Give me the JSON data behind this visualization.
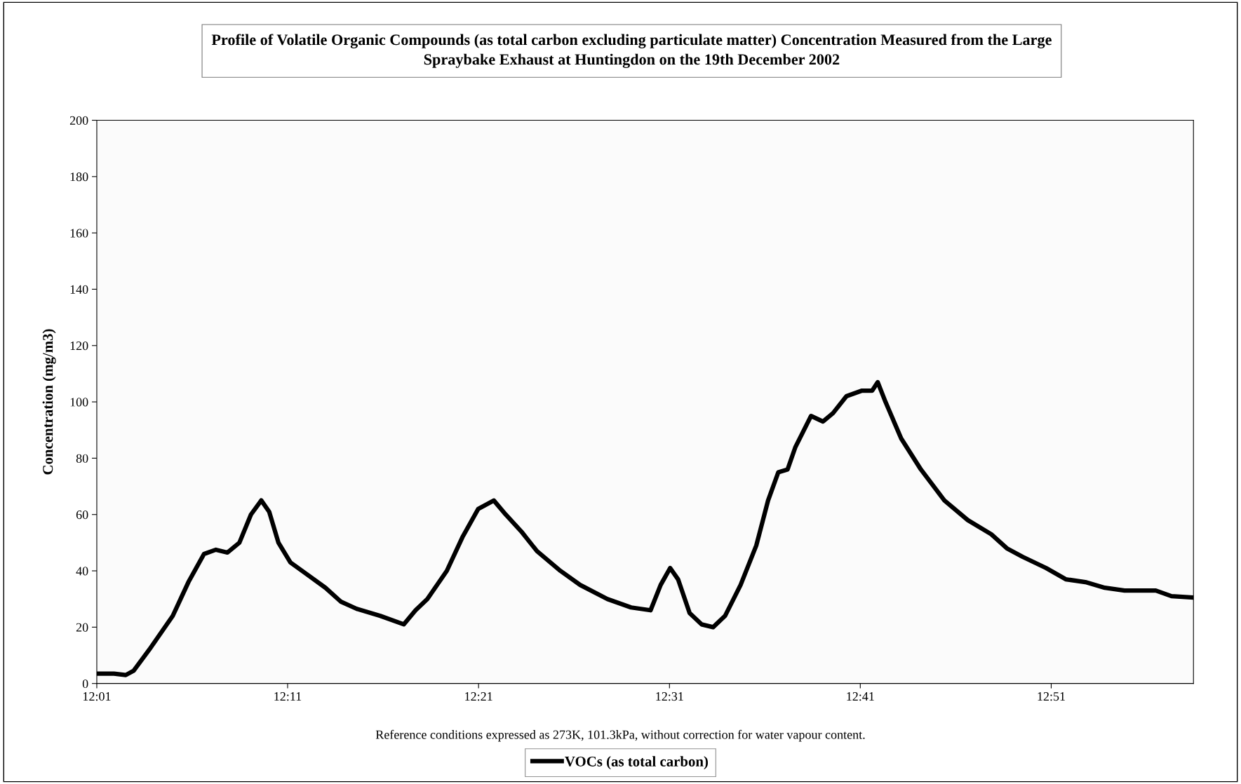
{
  "chart_data": {
    "type": "line",
    "title": "Profile of Volatile Organic Compounds (as total carbon excluding particulate matter) Concentration Measured from the Large\nSpraybake Exhaust at Huntingdon on the 19th December 2002",
    "ylabel": "Concentration (mg/m3)",
    "annotations": [
      "Reference conditions expressed as 273K, 101.3kPa, without correction for water vapour content."
    ],
    "x": [
      12.0167,
      12.0317,
      12.042,
      12.0488,
      12.0625,
      12.083,
      12.0967,
      12.1103,
      12.1207,
      12.1308,
      12.1412,
      12.1513,
      12.1603,
      12.1672,
      12.1753,
      12.1857,
      12.1993,
      12.2163,
      12.23,
      12.2437,
      12.2642,
      12.2848,
      12.295,
      12.3053,
      12.3223,
      12.336,
      12.3497,
      12.3633,
      12.3737,
      12.3873,
      12.401,
      12.4215,
      12.4387,
      12.4625,
      12.4832,
      12.5002,
      12.509,
      12.5173,
      12.5242,
      12.5343,
      12.5447,
      12.5548,
      12.5652,
      12.5788,
      12.5925,
      12.6028,
      12.6117,
      12.6198,
      12.6267,
      12.6403,
      12.6507,
      12.6595,
      12.6712,
      12.6848,
      12.6937,
      12.6985,
      12.7053,
      12.719,
      12.7362,
      12.7567,
      12.7772,
      12.7977,
      12.8113,
      12.825,
      12.8455,
      12.8627,
      12.8798,
      12.8968,
      12.914,
      12.9413,
      12.955,
      12.9742
    ],
    "series": [
      {
        "name": "VOCs (as total carbon)",
        "color": "#000000",
        "values": [
          3.5,
          3.5,
          3,
          4.5,
          12,
          24,
          36,
          46,
          47.5,
          46.5,
          50,
          60,
          65,
          61,
          50,
          43,
          39,
          34,
          29,
          26.5,
          24,
          21,
          26,
          30,
          40,
          52,
          62,
          65,
          60,
          54,
          47,
          40,
          35,
          30,
          27,
          26,
          35,
          41,
          37,
          25,
          21,
          20,
          24,
          35,
          49,
          65,
          75,
          76,
          84,
          95,
          93,
          96,
          102,
          104,
          104,
          107,
          100,
          87,
          76,
          65,
          58,
          53,
          48,
          45,
          41,
          37,
          36,
          34,
          33,
          33,
          31,
          30.5
        ]
      }
    ],
    "xlim": [
      12.0167,
      12.9742
    ],
    "xticks": [
      {
        "value": 12.0167,
        "label": "12:01"
      },
      {
        "value": 12.1833,
        "label": "12:11"
      },
      {
        "value": 12.35,
        "label": "12:21"
      },
      {
        "value": 12.5167,
        "label": "12:31"
      },
      {
        "value": 12.6833,
        "label": "12:41"
      },
      {
        "value": 12.85,
        "label": "12:51"
      }
    ],
    "ylim": [
      0,
      200
    ],
    "yticks": [
      0,
      20,
      40,
      60,
      80,
      100,
      120,
      140,
      160,
      180,
      200
    ],
    "grid": false,
    "legend": "bottom",
    "line_style": "solid",
    "marker": "none"
  }
}
